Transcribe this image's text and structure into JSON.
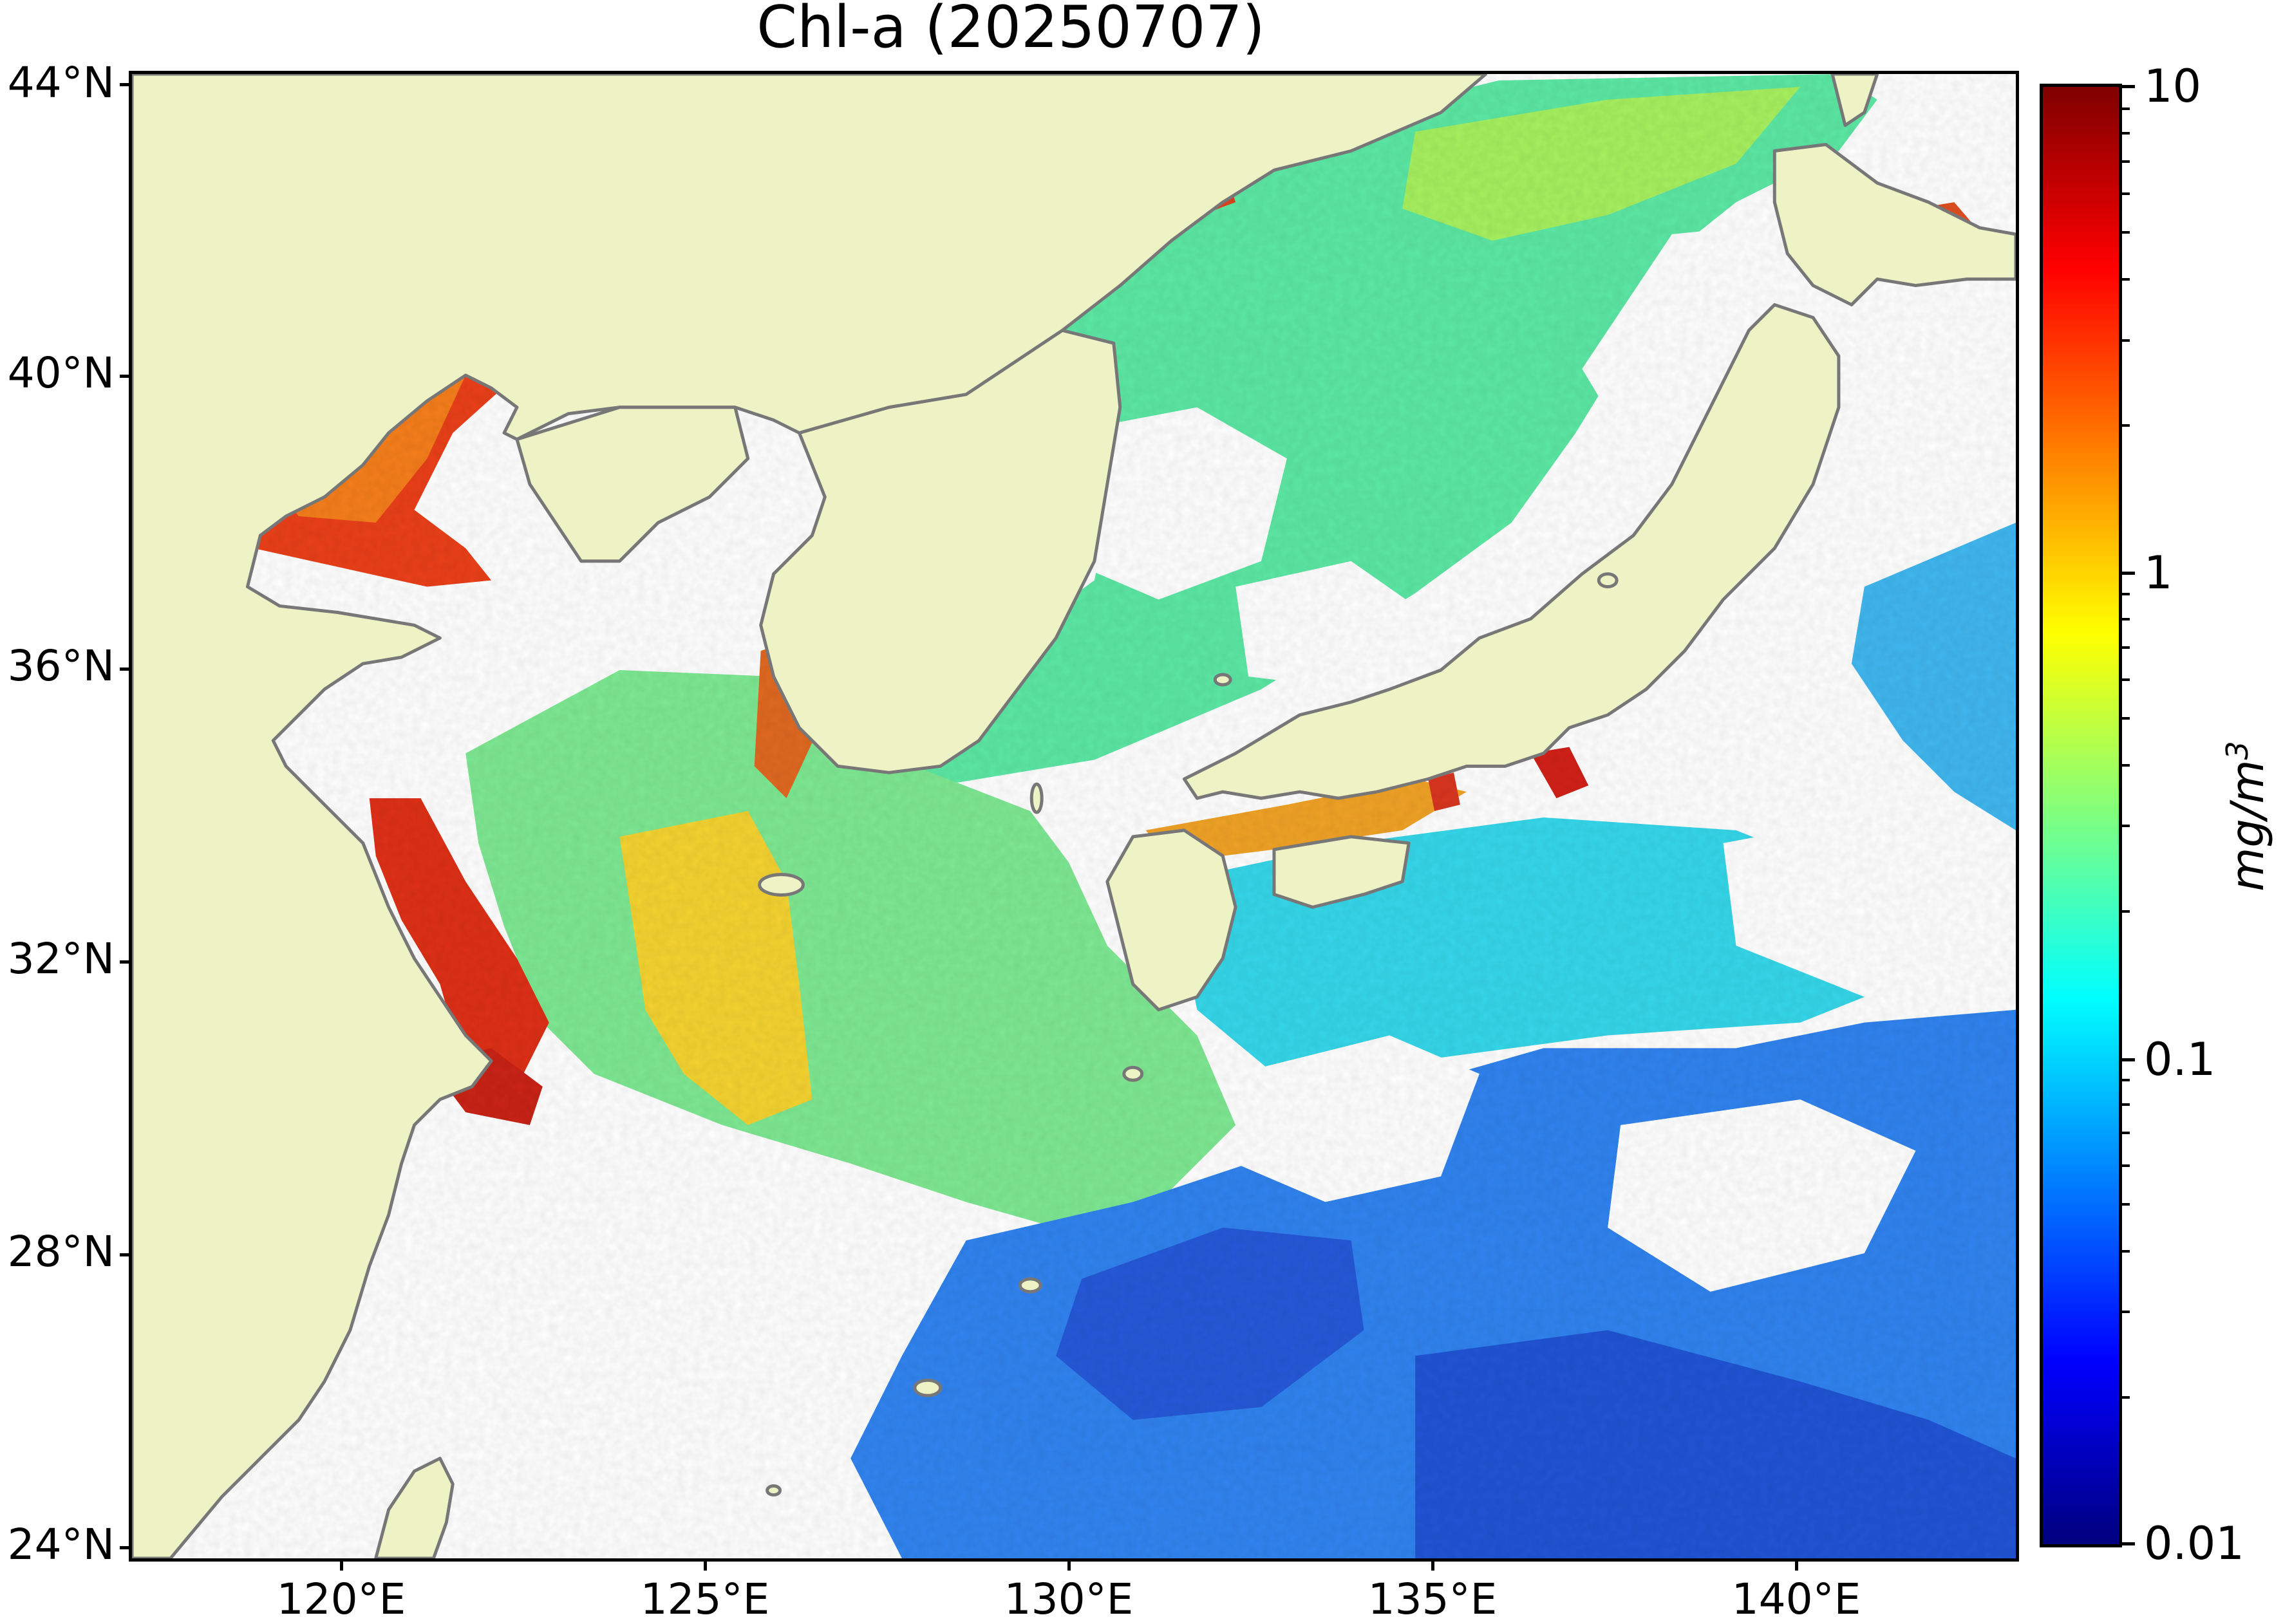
{
  "title": "Chl-a (20250707)",
  "map": {
    "lat_labels": [
      "44°N",
      "40°N",
      "36°N",
      "32°N",
      "28°N",
      "24°N"
    ],
    "lon_labels": [
      "120°E",
      "125°E",
      "130°E",
      "135°E",
      "140°E"
    ],
    "lat_range": [
      24,
      44.5
    ],
    "lon_range": [
      117,
      143
    ],
    "land_color": "#eef3c6",
    "coastline_color": "#777777",
    "no_data_color": "#ffffff"
  },
  "colorbar": {
    "scale": "log",
    "range": [
      0.01,
      10
    ],
    "tick_labels": [
      "10",
      "1",
      "0.1",
      "0.01"
    ],
    "unit_base": "mg/m",
    "unit_exp": "3",
    "colormap": "jet",
    "colors": [
      "#00007f",
      "#0000ff",
      "#007fff",
      "#00ffff",
      "#7fff7f",
      "#ffff00",
      "#ff7f00",
      "#ff0000",
      "#7f0000"
    ]
  }
}
